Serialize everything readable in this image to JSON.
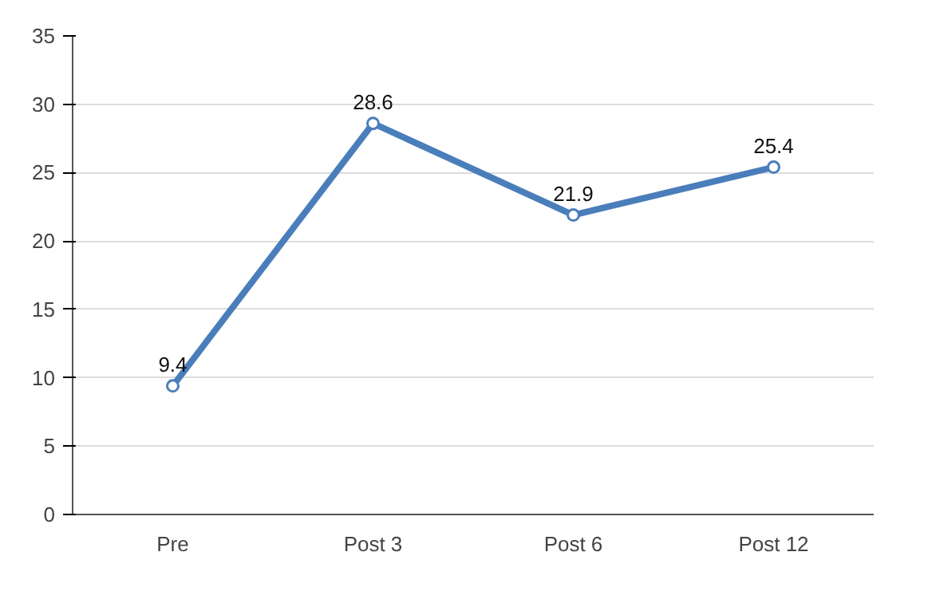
{
  "chart_data": {
    "type": "line",
    "categories": [
      "Pre",
      "Post 3",
      "Post 6",
      "Post 12"
    ],
    "series": [
      {
        "color": "#4a7ebb",
        "values": [
          9.4,
          28.6,
          21.9,
          25.4
        ]
      }
    ],
    "ylim": [
      0,
      35
    ],
    "yticks": [
      0,
      5,
      10,
      15,
      20,
      25,
      30,
      35
    ],
    "grid": "y",
    "marker": "circle",
    "line_style": "solid",
    "data_labels": true
  }
}
